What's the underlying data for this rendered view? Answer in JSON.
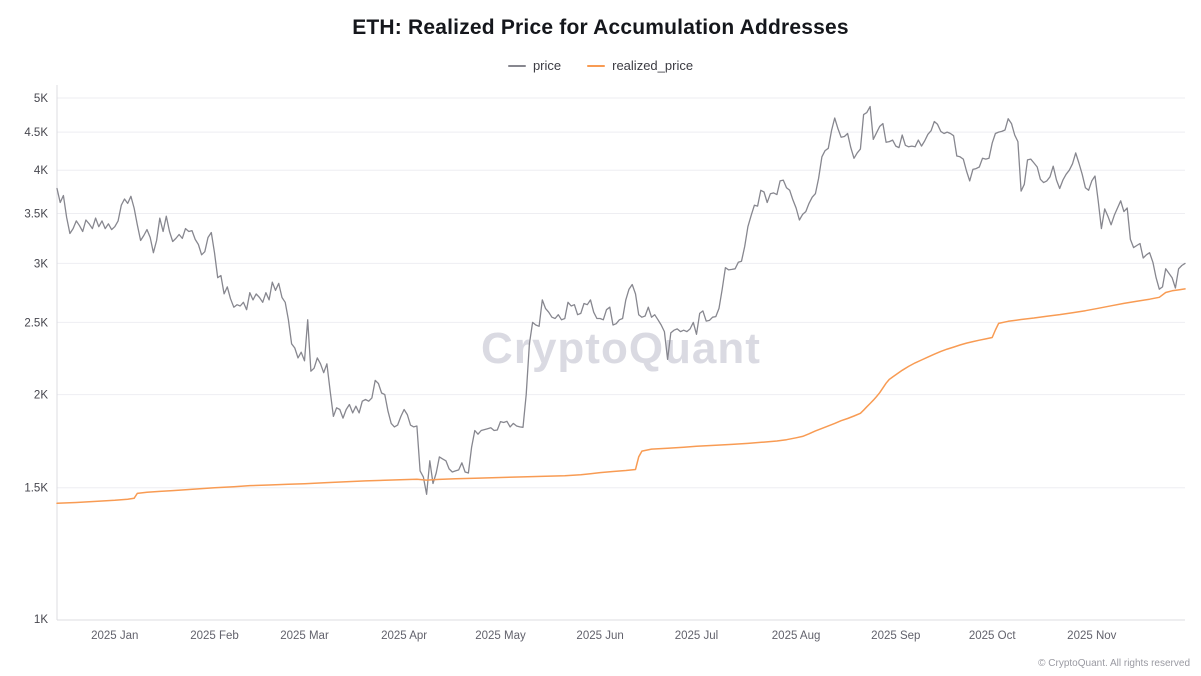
{
  "page": {
    "title": "ETH: Realized Price for Accumulation Addresses",
    "watermark": "CryptoQuant",
    "footer": "© CryptoQuant. All rights reserved"
  },
  "legend": {
    "items": [
      {
        "label": "price",
        "color": "#87878f"
      },
      {
        "label": "realized_price",
        "color": "#f89b53"
      }
    ]
  },
  "chart_data": {
    "type": "line",
    "title": "ETH: Realized Price for Accumulation Addresses",
    "legend_position": "top",
    "grid": "horizontal-only",
    "y_scale": "log",
    "ylim": [
      1000,
      5000
    ],
    "y_ticks": [
      5000,
      4500,
      4000,
      3500,
      3000,
      2500,
      2000,
      1500,
      1000
    ],
    "y_tick_labels": [
      "5K",
      "4.5K",
      "4K",
      "3.5K",
      "3K",
      "2.5K",
      "2K",
      "1.5K",
      "1K"
    ],
    "x_unit": "daily samples, index 0 = mid-Dec 2024",
    "xlim": [
      0,
      351
    ],
    "x_ticks": [
      {
        "x": 18,
        "label": "2025 Jan"
      },
      {
        "x": 49,
        "label": "2025 Feb"
      },
      {
        "x": 77,
        "label": "2025 Mar"
      },
      {
        "x": 108,
        "label": "2025 Apr"
      },
      {
        "x": 138,
        "label": "2025 May"
      },
      {
        "x": 169,
        "label": "2025 Jun"
      },
      {
        "x": 199,
        "label": "2025 Jul"
      },
      {
        "x": 230,
        "label": "2025 Aug"
      },
      {
        "x": 261,
        "label": "2025 Sep"
      },
      {
        "x": 291,
        "label": "2025 Oct"
      },
      {
        "x": 322,
        "label": "2025 Nov"
      }
    ],
    "series": [
      {
        "name": "price",
        "color": "#87878f",
        "width": 1.3,
        "x_start": 0,
        "x_step": 1,
        "values": [
          3780,
          3620,
          3700,
          3460,
          3290,
          3340,
          3420,
          3370,
          3310,
          3430,
          3390,
          3340,
          3450,
          3360,
          3420,
          3340,
          3390,
          3330,
          3360,
          3420,
          3590,
          3660,
          3610,
          3690,
          3560,
          3380,
          3220,
          3270,
          3330,
          3250,
          3100,
          3220,
          3450,
          3310,
          3470,
          3310,
          3210,
          3240,
          3280,
          3240,
          3340,
          3310,
          3320,
          3230,
          3180,
          3080,
          3110,
          3250,
          3300,
          3100,
          2870,
          2890,
          2730,
          2790,
          2690,
          2620,
          2640,
          2630,
          2660,
          2600,
          2740,
          2680,
          2730,
          2700,
          2660,
          2740,
          2680,
          2830,
          2760,
          2820,
          2700,
          2660,
          2520,
          2340,
          2310,
          2240,
          2280,
          2220,
          2520,
          2150,
          2170,
          2240,
          2200,
          2140,
          2200,
          2020,
          1870,
          1920,
          1910,
          1860,
          1910,
          1940,
          1890,
          1930,
          1890,
          1960,
          1970,
          1960,
          1980,
          2090,
          2070,
          2010,
          2000,
          1900,
          1830,
          1810,
          1820,
          1870,
          1910,
          1880,
          1820,
          1810,
          1815,
          1580,
          1550,
          1470,
          1630,
          1520,
          1570,
          1650,
          1640,
          1630,
          1590,
          1575,
          1580,
          1585,
          1620,
          1575,
          1570,
          1700,
          1790,
          1770,
          1790,
          1795,
          1800,
          1805,
          1790,
          1793,
          1840,
          1835,
          1842,
          1810,
          1830,
          1815,
          1810,
          1808,
          2000,
          2340,
          2500,
          2480,
          2470,
          2680,
          2610,
          2580,
          2540,
          2530,
          2560,
          2520,
          2530,
          2660,
          2630,
          2640,
          2560,
          2570,
          2650,
          2640,
          2680,
          2580,
          2530,
          2530,
          2520,
          2600,
          2620,
          2480,
          2490,
          2520,
          2530,
          2680,
          2770,
          2810,
          2730,
          2560,
          2540,
          2550,
          2620,
          2540,
          2560,
          2520,
          2480,
          2430,
          2230,
          2420,
          2440,
          2450,
          2430,
          2440,
          2430,
          2450,
          2500,
          2410,
          2570,
          2590,
          2510,
          2515,
          2540,
          2545,
          2610,
          2770,
          2960,
          2940,
          2945,
          2950,
          3010,
          3020,
          3160,
          3360,
          3480,
          3590,
          3580,
          3760,
          3740,
          3620,
          3720,
          3730,
          3710,
          3870,
          3880,
          3790,
          3760,
          3650,
          3560,
          3430,
          3490,
          3520,
          3610,
          3680,
          3720,
          3900,
          4170,
          4250,
          4280,
          4520,
          4700,
          4550,
          4430,
          4440,
          4480,
          4290,
          4150,
          4220,
          4270,
          4750,
          4780,
          4870,
          4400,
          4490,
          4580,
          4620,
          4360,
          4370,
          4390,
          4310,
          4290,
          4460,
          4320,
          4300,
          4310,
          4300,
          4390,
          4310,
          4380,
          4470,
          4520,
          4650,
          4610,
          4510,
          4480,
          4500,
          4480,
          4450,
          4180,
          4170,
          4140,
          3990,
          3870,
          4010,
          4020,
          4040,
          4150,
          4140,
          4150,
          4350,
          4480,
          4500,
          4510,
          4530,
          4690,
          4620,
          4460,
          4370,
          3750,
          3830,
          4130,
          4140,
          4090,
          4040,
          3890,
          3850,
          3870,
          3920,
          4050,
          3880,
          3780,
          3880,
          3950,
          4000,
          4080,
          4220,
          4090,
          3950,
          3790,
          3760,
          3870,
          3930,
          3640,
          3340,
          3550,
          3470,
          3380,
          3480,
          3560,
          3640,
          3520,
          3560,
          3230,
          3150,
          3170,
          3190,
          3050,
          3080,
          3100,
          3010,
          2870,
          2770,
          2790,
          2950,
          2910,
          2870,
          2780,
          2950,
          2980,
          3000
        ]
      },
      {
        "name": "realized_price",
        "color": "#f89b53",
        "width": 1.5,
        "points": [
          [
            0,
            1430
          ],
          [
            6,
            1433
          ],
          [
            12,
            1438
          ],
          [
            18,
            1443
          ],
          [
            22,
            1448
          ],
          [
            24,
            1452
          ],
          [
            25,
            1474
          ],
          [
            28,
            1479
          ],
          [
            32,
            1483
          ],
          [
            36,
            1487
          ],
          [
            40,
            1491
          ],
          [
            45,
            1496
          ],
          [
            49,
            1500
          ],
          [
            55,
            1505
          ],
          [
            60,
            1510
          ],
          [
            66,
            1513
          ],
          [
            72,
            1516
          ],
          [
            77,
            1519
          ],
          [
            84,
            1524
          ],
          [
            90,
            1528
          ],
          [
            96,
            1532
          ],
          [
            102,
            1535
          ],
          [
            108,
            1538
          ],
          [
            112,
            1540
          ],
          [
            115,
            1536
          ],
          [
            119,
            1539
          ],
          [
            124,
            1542
          ],
          [
            130,
            1545
          ],
          [
            138,
            1548
          ],
          [
            145,
            1551
          ],
          [
            152,
            1554
          ],
          [
            158,
            1557
          ],
          [
            163,
            1561
          ],
          [
            166,
            1566
          ],
          [
            169,
            1572
          ],
          [
            173,
            1577
          ],
          [
            177,
            1582
          ],
          [
            180,
            1587
          ],
          [
            181,
            1650
          ],
          [
            182,
            1680
          ],
          [
            185,
            1690
          ],
          [
            190,
            1695
          ],
          [
            195,
            1700
          ],
          [
            199,
            1705
          ],
          [
            205,
            1710
          ],
          [
            210,
            1715
          ],
          [
            215,
            1720
          ],
          [
            220,
            1727
          ],
          [
            224,
            1733
          ],
          [
            227,
            1740
          ],
          [
            230,
            1750
          ],
          [
            232,
            1758
          ],
          [
            234,
            1772
          ],
          [
            236,
            1788
          ],
          [
            238,
            1802
          ],
          [
            240,
            1816
          ],
          [
            242,
            1830
          ],
          [
            244,
            1845
          ],
          [
            246,
            1858
          ],
          [
            248,
            1872
          ],
          [
            250,
            1888
          ],
          [
            251,
            1906
          ],
          [
            252,
            1926
          ],
          [
            253,
            1946
          ],
          [
            254,
            1966
          ],
          [
            255,
            1988
          ],
          [
            256,
            2012
          ],
          [
            257,
            2042
          ],
          [
            258,
            2072
          ],
          [
            259,
            2096
          ],
          [
            260,
            2112
          ],
          [
            261,
            2126
          ],
          [
            263,
            2156
          ],
          [
            265,
            2182
          ],
          [
            267,
            2206
          ],
          [
            269,
            2226
          ],
          [
            271,
            2246
          ],
          [
            273,
            2266
          ],
          [
            275,
            2286
          ],
          [
            277,
            2302
          ],
          [
            279,
            2316
          ],
          [
            281,
            2331
          ],
          [
            283,
            2345
          ],
          [
            285,
            2356
          ],
          [
            287,
            2366
          ],
          [
            289,
            2376
          ],
          [
            291,
            2386
          ],
          [
            292,
            2442
          ],
          [
            293,
            2492
          ],
          [
            296,
            2508
          ],
          [
            300,
            2522
          ],
          [
            304,
            2534
          ],
          [
            308,
            2548
          ],
          [
            312,
            2561
          ],
          [
            316,
            2576
          ],
          [
            320,
            2592
          ],
          [
            324,
            2611
          ],
          [
            328,
            2631
          ],
          [
            332,
            2651
          ],
          [
            336,
            2669
          ],
          [
            340,
            2686
          ],
          [
            343,
            2701
          ],
          [
            345,
            2742
          ],
          [
            347,
            2756
          ],
          [
            349,
            2764
          ],
          [
            351,
            2772
          ]
        ]
      }
    ]
  }
}
